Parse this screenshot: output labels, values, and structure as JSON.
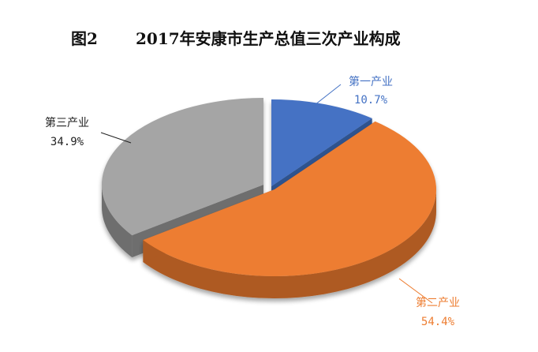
{
  "figure_label": "图2",
  "chart_data": {
    "type": "pie",
    "title": "2017年安康市生产总值三次产业构成",
    "slices": [
      {
        "name": "第一产业",
        "value": 10.7,
        "label": "10.7%",
        "color": "#4472c4",
        "side": "#2f528f",
        "label_color": "#4472c4",
        "pct_color": "#4472c4"
      },
      {
        "name": "第二产业",
        "value": 54.4,
        "label": "54.4%",
        "color": "#ed7d31",
        "side": "#ae5a21",
        "label_color": "#ed7d31",
        "pct_color": "#ed7d31"
      },
      {
        "name": "第三产业",
        "value": 34.9,
        "label": "34.9%",
        "color": "#a5a5a5",
        "side": "#6e6e6e",
        "label_color": "#222222",
        "pct_color": "#222222"
      }
    ],
    "legend": "none"
  }
}
